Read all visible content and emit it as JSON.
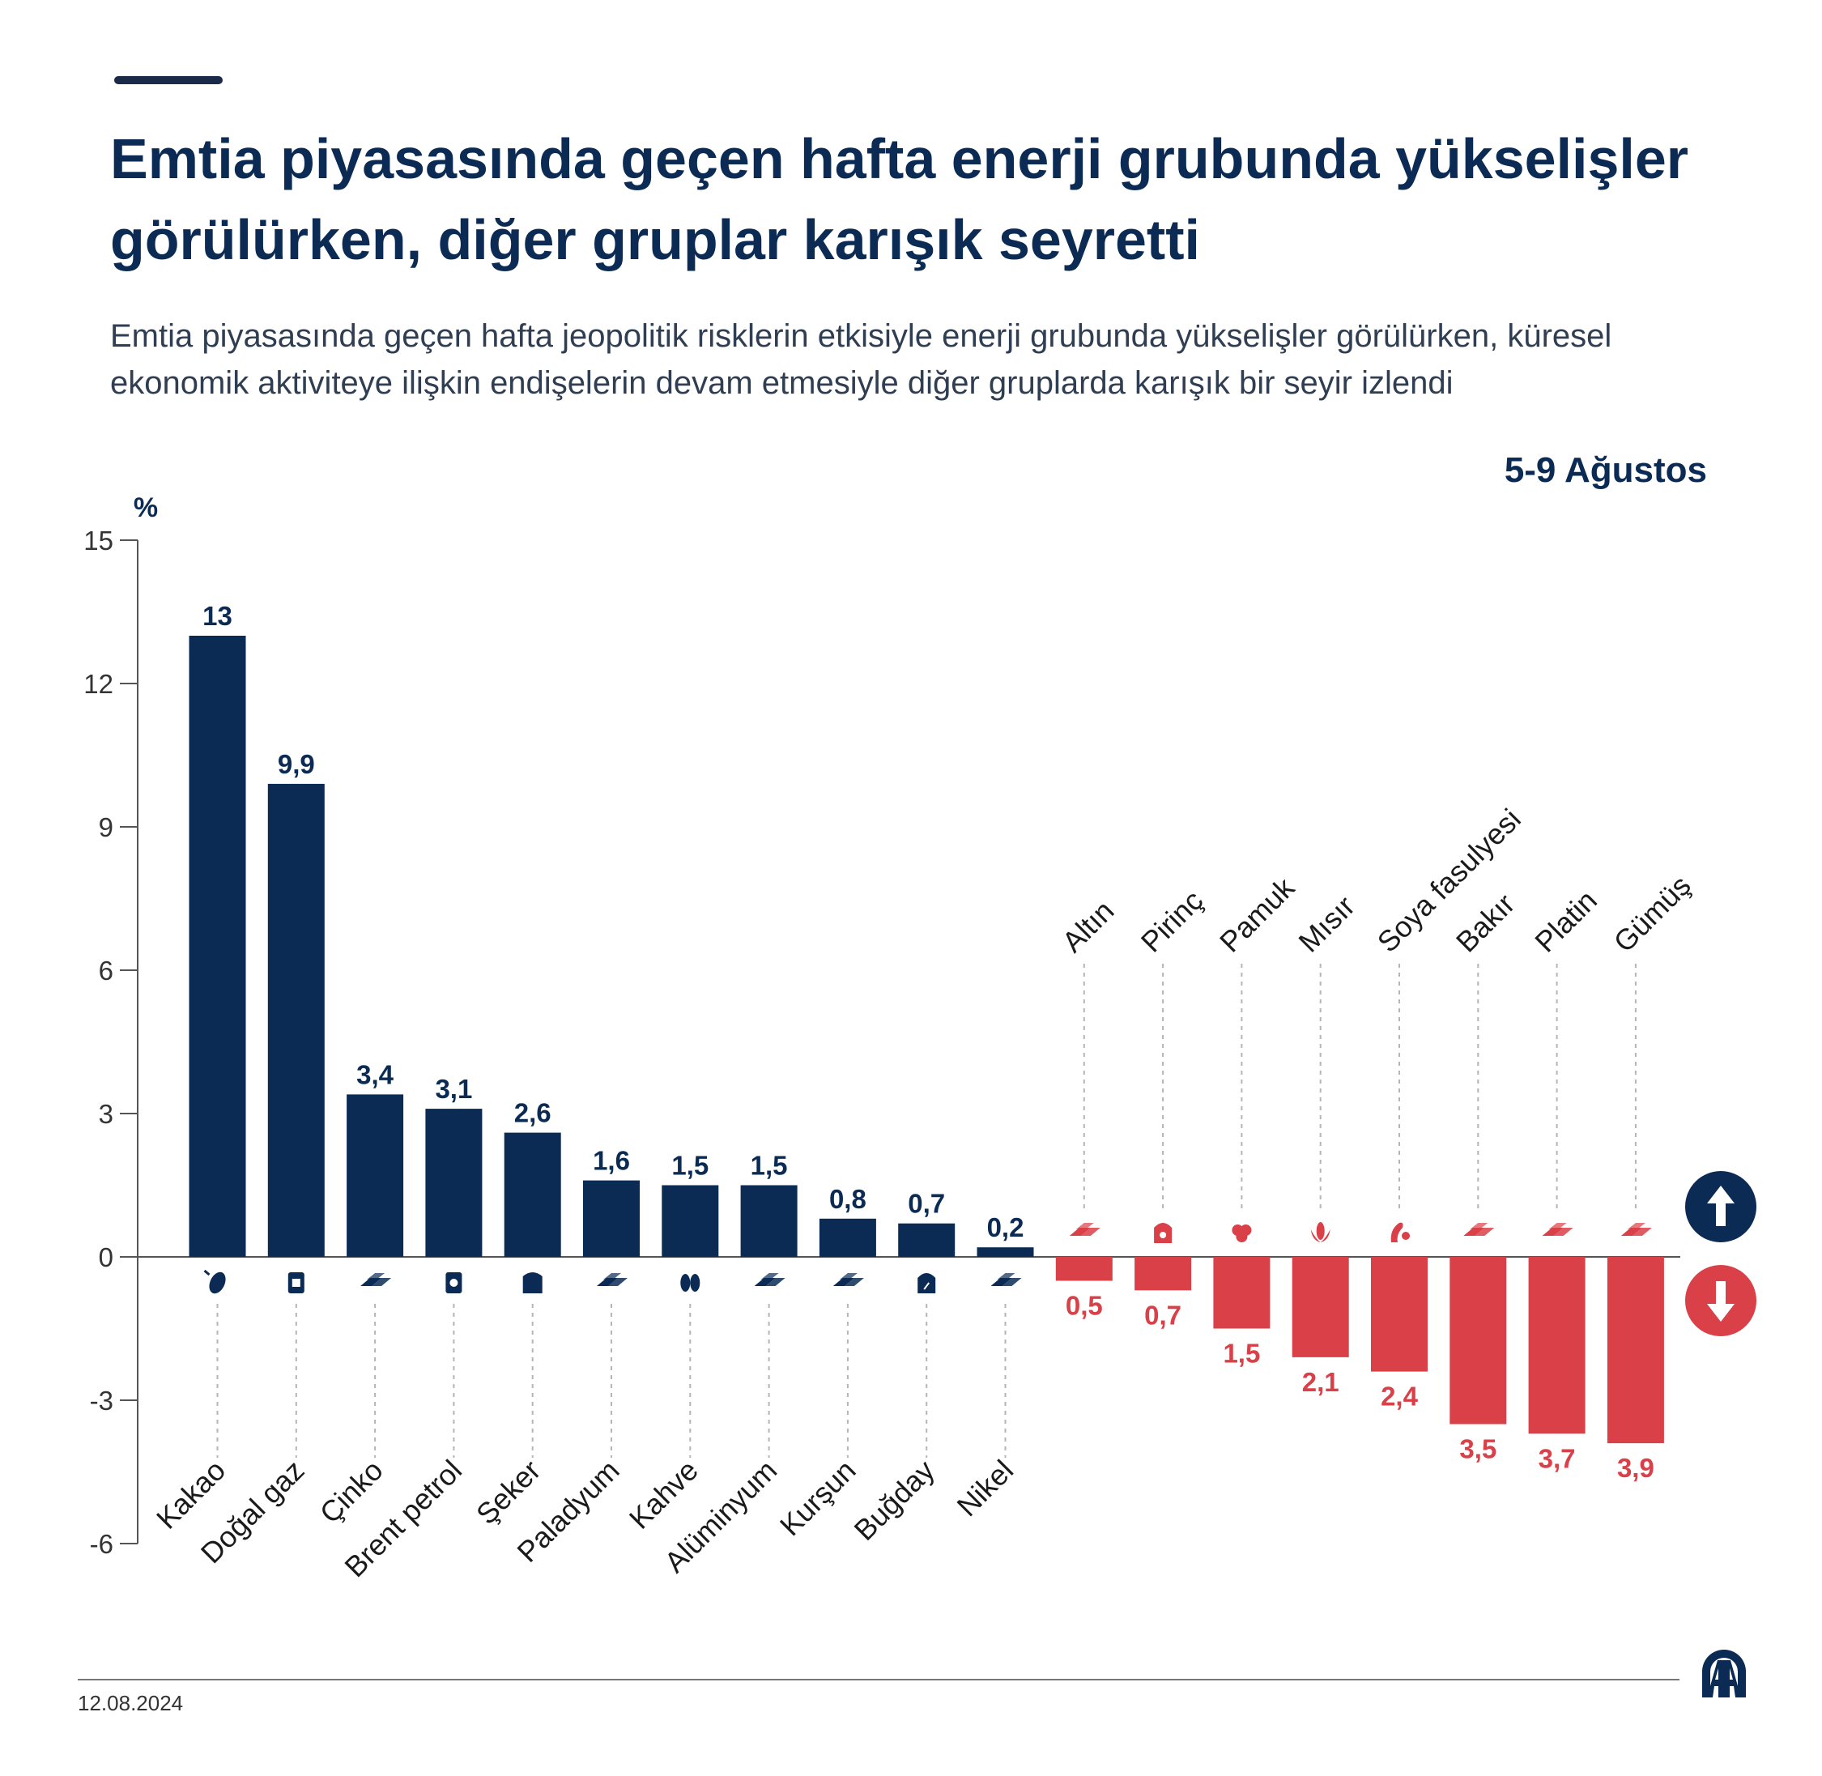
{
  "header": {
    "title_line1": "Emtia piyasasında geçen hafta enerji grubunda yükselişler",
    "title_line2": "görülürken, diğer gruplar karışık seyretti",
    "subtitle_line1": "Emtia piyasasında geçen hafta jeopolitik risklerin etkisiyle enerji grubunda yükselişler görülürken, küresel",
    "subtitle_line2": "ekonomik aktiviteye ilişkin endişelerin devam etmesiyle diğer gruplarda karışık bir seyir izlendi",
    "period": "5-9 Ağustos"
  },
  "footer": {
    "date": "12.08.2024",
    "logo_text": "AA"
  },
  "colors": {
    "navy": "#0b2b54",
    "red": "#d94048",
    "axis": "#555555",
    "leader": "#b5b5b5"
  },
  "chart_data": {
    "type": "bar",
    "ylabel": "%",
    "ylim": [
      -6,
      15
    ],
    "yticks": [
      15,
      12,
      9,
      6,
      3,
      0,
      -3,
      -6
    ],
    "grid": false,
    "indicators": [
      "up-arrow-icon",
      "down-arrow-icon"
    ],
    "categories": [
      "Kakao",
      "Doğal gaz",
      "Çinko",
      "Brent petrol",
      "Şeker",
      "Paladyum",
      "Kahve",
      "Alüminyum",
      "Kurşun",
      "Buğday",
      "Nikel",
      "Altın",
      "Pirinç",
      "Pamuk",
      "Mısır",
      "Soya fasulyesi",
      "Bakır",
      "Platin",
      "Gümüş"
    ],
    "values": [
      13,
      9.9,
      3.4,
      3.1,
      2.6,
      1.6,
      1.5,
      1.5,
      0.8,
      0.7,
      0.2,
      -0.5,
      -0.7,
      -1.5,
      -2.1,
      -2.4,
      -3.5,
      -3.7,
      -3.9
    ],
    "value_labels": [
      "13",
      "9,9",
      "3,4",
      "3,1",
      "2,6",
      "1,6",
      "1,5",
      "1,5",
      "0,8",
      "0,7",
      "0,2",
      "0,5",
      "0,7",
      "1,5",
      "2,1",
      "2,4",
      "3,5",
      "3,7",
      "3,9"
    ],
    "icons": [
      "cocoa-icon",
      "gas-barrel-icon",
      "metal-bars-icon",
      "oil-barrel-icon",
      "sugar-sack-icon",
      "metal-bars-icon",
      "coffee-beans-icon",
      "metal-bars-icon",
      "metal-bars-icon",
      "wheat-sack-icon",
      "metal-bars-icon",
      "metal-bars-icon",
      "rice-sack-icon",
      "cotton-icon",
      "corn-icon",
      "soybean-icon",
      "metal-bars-icon",
      "metal-bars-icon",
      "metal-bars-icon"
    ]
  }
}
